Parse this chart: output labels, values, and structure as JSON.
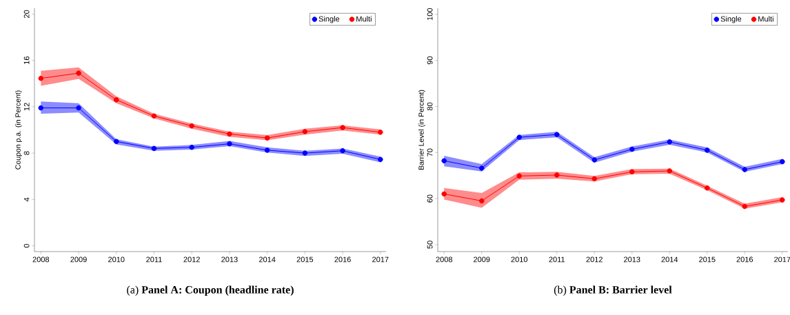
{
  "chart_data": [
    {
      "type": "line",
      "title": "(a) **Panel A: Coupon (headline rate)**",
      "ylabel": "Coupon p.a. (in Percent)",
      "categories": [
        "2008",
        "2009",
        "2010",
        "2011",
        "2012",
        "2013",
        "2014",
        "2015",
        "2016",
        "2017"
      ],
      "series": [
        {
          "name": "Single",
          "color": "#0000ff",
          "values": [
            11.9,
            11.9,
            9.0,
            8.4,
            8.5,
            8.8,
            8.25,
            8.0,
            8.2,
            7.45
          ],
          "lower": [
            11.4,
            11.5,
            8.75,
            8.2,
            8.3,
            8.6,
            8.05,
            7.75,
            7.95,
            7.2
          ],
          "upper": [
            12.45,
            12.3,
            9.2,
            8.55,
            8.7,
            9.05,
            8.5,
            8.2,
            8.4,
            7.7
          ]
        },
        {
          "name": "Multi",
          "color": "#ff0000",
          "values": [
            14.45,
            14.9,
            12.6,
            11.2,
            10.35,
            9.65,
            9.3,
            9.85,
            10.2,
            9.8
          ],
          "lower": [
            13.8,
            14.4,
            12.3,
            11.0,
            10.1,
            9.4,
            9.1,
            9.6,
            9.95,
            9.6
          ],
          "upper": [
            15.1,
            15.4,
            12.9,
            11.4,
            10.55,
            9.85,
            9.55,
            10.1,
            10.4,
            10.05
          ]
        }
      ],
      "ylim": [
        -0.5,
        20.5
      ],
      "yticks": [
        0,
        4,
        8,
        12,
        16,
        20
      ],
      "grid": false,
      "legend": "top right",
      "marker": "circle",
      "line_style": "solid"
    },
    {
      "type": "line",
      "title": "(b) **Panel B: Barrier level**",
      "ylabel": "Barrier Level (in Percent)",
      "categories": [
        "2008",
        "2009",
        "2010",
        "2011",
        "2012",
        "2013",
        "2014",
        "2015",
        "2016",
        "2017"
      ],
      "series": [
        {
          "name": "Single",
          "color": "#0000ff",
          "values": [
            68.2,
            66.6,
            73.3,
            73.9,
            68.4,
            70.7,
            72.3,
            70.5,
            66.3,
            68.0
          ],
          "lower": [
            67.0,
            65.9,
            72.7,
            73.3,
            67.8,
            70.2,
            71.7,
            70.0,
            65.8,
            67.5
          ],
          "upper": [
            69.3,
            67.5,
            73.8,
            74.5,
            69.0,
            71.3,
            72.8,
            71.1,
            66.9,
            68.6
          ]
        },
        {
          "name": "Multi",
          "color": "#ff0000",
          "values": [
            61.0,
            59.5,
            64.9,
            65.1,
            64.3,
            65.8,
            66.0,
            62.3,
            58.3,
            59.7
          ],
          "lower": [
            59.8,
            58.0,
            64.1,
            64.3,
            63.7,
            65.3,
            65.4,
            61.8,
            57.8,
            59.2
          ],
          "upper": [
            62.3,
            61.2,
            65.7,
            65.8,
            64.9,
            66.4,
            66.5,
            62.8,
            58.9,
            60.3
          ]
        }
      ],
      "ylim": [
        48.5,
        101.3
      ],
      "yticks": [
        50,
        60,
        70,
        80,
        90,
        100
      ],
      "grid": false,
      "legend": "top right",
      "marker": "circle",
      "line_style": "solid"
    }
  ]
}
